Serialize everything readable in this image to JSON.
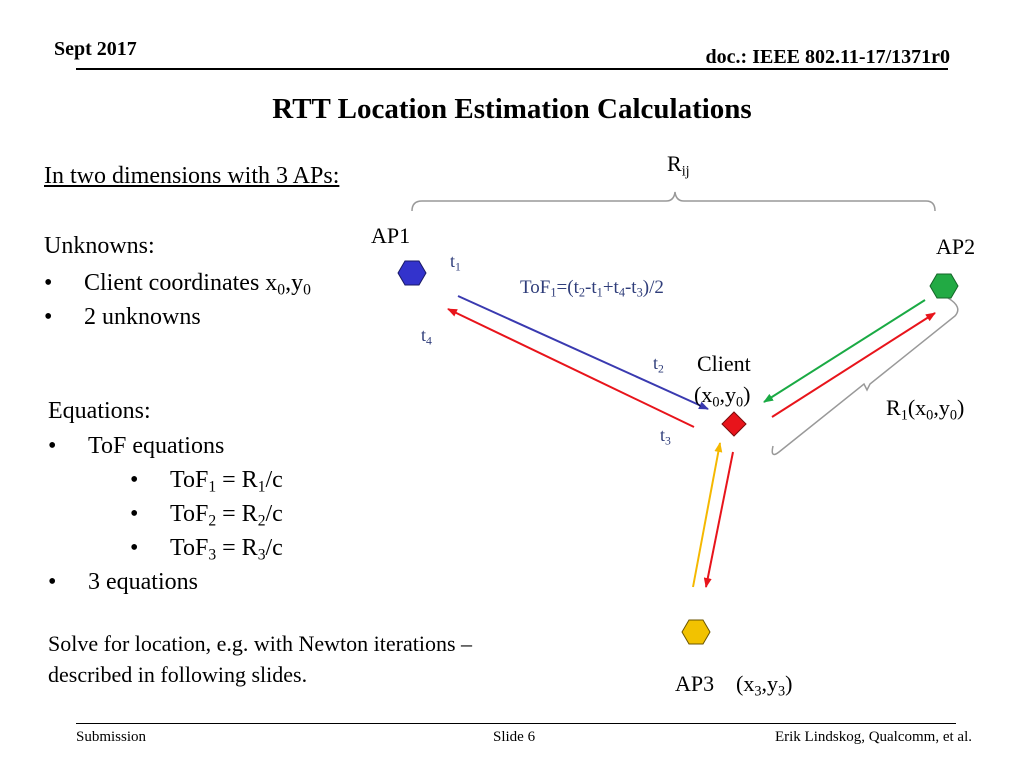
{
  "header": {
    "date": "Sept 2017",
    "doc": "doc.: IEEE 802.11-17/1371r0"
  },
  "title": "RTT Location Estimation Calculations",
  "left": {
    "intro": "In two dimensions with 3 APs:",
    "unknowns_heading": "Unknowns:",
    "unknowns": [
      {
        "text": "Client coordinates x",
        "sub1": "0",
        "mid": ",y",
        "sub2": "0"
      },
      {
        "text": "2 unknowns"
      }
    ],
    "equations_heading": "Equations:",
    "tof_equations_label": "ToF equations",
    "tof_equations": [
      {
        "lhs": "ToF",
        "sub": "1",
        "op": " = R",
        "rsub": "1",
        "tail": "/c"
      },
      {
        "lhs": "ToF",
        "sub": "2",
        "op": " = R",
        "rsub": "2",
        "tail": "/c"
      },
      {
        "lhs": "ToF",
        "sub": "3",
        "op": " = R",
        "rsub": "3",
        "tail": "/c"
      }
    ],
    "equation_count": "3 equations",
    "solve_note": "Solve for location, e.g. with Newton iterations – described in following slides."
  },
  "diagram": {
    "r_ij": {
      "base": "R",
      "sub": "ij"
    },
    "ap1_label": "AP1",
    "ap2_label": "AP2",
    "ap3_label": "AP3",
    "ap3_coords": {
      "a": "(x",
      "s1": "3",
      "b": ",y",
      "s2": "3",
      "c": ")"
    },
    "client_label": "Client",
    "client_coords": {
      "a": "(x",
      "s1": "0",
      "b": ",y",
      "s2": "0",
      "c": ")"
    },
    "r1_label": {
      "a": "R",
      "s0": "1",
      "b": "(x",
      "s1": "0",
      "c": ",y",
      "s2": "0",
      "d": ")"
    },
    "times": {
      "t1": "1",
      "t2": "2",
      "t3": "3",
      "t4": "4"
    },
    "tof_formula": {
      "a": "ToF",
      "s1": "1",
      "b": "=(t",
      "s2": "2",
      "c": "-t",
      "s3": "1",
      "d": "+t",
      "s4": "4",
      "e": "-t",
      "s5": "3",
      "f": ")/2"
    },
    "colors": {
      "ap1": "#3333cc",
      "ap2": "#22aa44",
      "ap3": "#f2c200",
      "client": "#e8141b",
      "arrow_blue": "#3a3ab0",
      "arrow_red": "#e8141b",
      "arrow_green": "#1aaa44",
      "arrow_yellow": "#f5b800",
      "bracket": "#999999"
    }
  },
  "footer": {
    "left": "Submission",
    "center": "Slide 6",
    "right": "Erik Lindskog, Qualcomm, et al."
  }
}
